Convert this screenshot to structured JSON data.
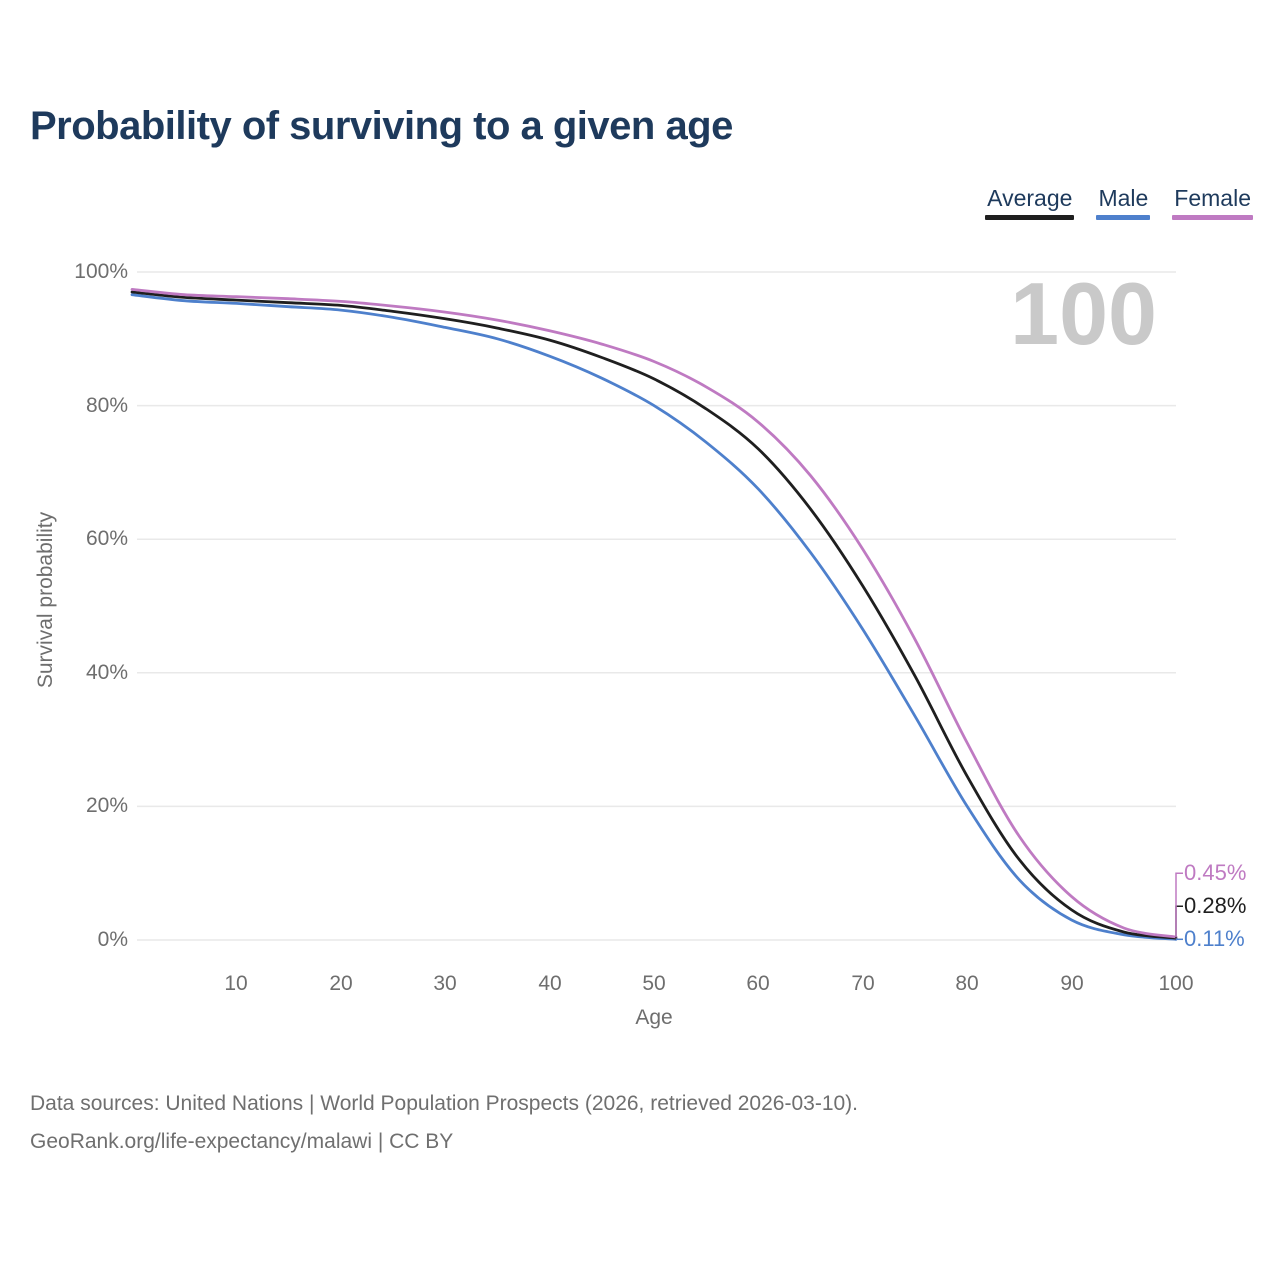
{
  "header": {
    "title": "Probability of surviving to a given age"
  },
  "legend": {
    "items": [
      {
        "label": "Average",
        "color": "#1f1f1f"
      },
      {
        "label": "Male",
        "color": "#4e80cc"
      },
      {
        "label": "Female",
        "color": "#bf7ac2"
      }
    ]
  },
  "chart_data": {
    "type": "line",
    "title": "Probability of surviving to a given age",
    "xlabel": "Age",
    "ylabel": "Survival probability",
    "watermark": "100",
    "xlim": [
      0,
      100
    ],
    "ylim": [
      0,
      100
    ],
    "grid": "horizontal",
    "legend_position": "top-right",
    "y_ticks": [
      {
        "value": 100,
        "label": "100%"
      },
      {
        "value": 80,
        "label": "80%"
      },
      {
        "value": 60,
        "label": "60%"
      },
      {
        "value": 40,
        "label": "40%"
      },
      {
        "value": 20,
        "label": "20%"
      },
      {
        "value": 0,
        "label": "0%"
      }
    ],
    "x_ticks": [
      {
        "value": 10,
        "label": "10"
      },
      {
        "value": 20,
        "label": "20"
      },
      {
        "value": 30,
        "label": "30"
      },
      {
        "value": 40,
        "label": "40"
      },
      {
        "value": 50,
        "label": "50"
      },
      {
        "value": 60,
        "label": "60"
      },
      {
        "value": 70,
        "label": "70"
      },
      {
        "value": 80,
        "label": "80"
      },
      {
        "value": 90,
        "label": "90"
      },
      {
        "value": 100,
        "label": "100"
      }
    ],
    "ages": [
      0,
      5,
      10,
      15,
      20,
      25,
      30,
      35,
      40,
      45,
      50,
      55,
      60,
      65,
      70,
      75,
      80,
      85,
      90,
      95,
      100
    ],
    "series": [
      {
        "name": "Male",
        "color": "#4e80cc",
        "end_label": "0.11%",
        "end_value": 0.11,
        "values": [
          96.6,
          95.7,
          95.3,
          94.8,
          94.3,
          93.2,
          91.7,
          90.0,
          87.4,
          84.1,
          80.0,
          74.5,
          67.5,
          58.0,
          46.5,
          33.5,
          20.0,
          9.0,
          3.0,
          0.8,
          0.11
        ]
      },
      {
        "name": "Average",
        "color": "#1f1f1f",
        "end_label": "0.28%",
        "end_value": 0.28,
        "values": [
          97.0,
          96.2,
          95.8,
          95.4,
          95.0,
          94.1,
          93.0,
          91.6,
          89.8,
          87.2,
          84.0,
          79.5,
          73.5,
          64.5,
          53.0,
          39.5,
          24.5,
          12.0,
          4.5,
          1.2,
          0.28
        ]
      },
      {
        "name": "Female",
        "color": "#bf7ac2",
        "end_label": "0.45%",
        "end_value": 0.45,
        "values": [
          97.4,
          96.6,
          96.3,
          96.0,
          95.6,
          94.9,
          94.0,
          92.8,
          91.2,
          89.2,
          86.6,
          82.8,
          77.5,
          69.5,
          58.5,
          45.0,
          29.5,
          15.5,
          6.5,
          1.8,
          0.45
        ]
      }
    ]
  },
  "footer": {
    "line1": "Data sources: United Nations | World Population Prospects (2026, retrieved 2026-03-10).",
    "line2": "GeoRank.org/life-expectancy/malawi | CC BY"
  }
}
